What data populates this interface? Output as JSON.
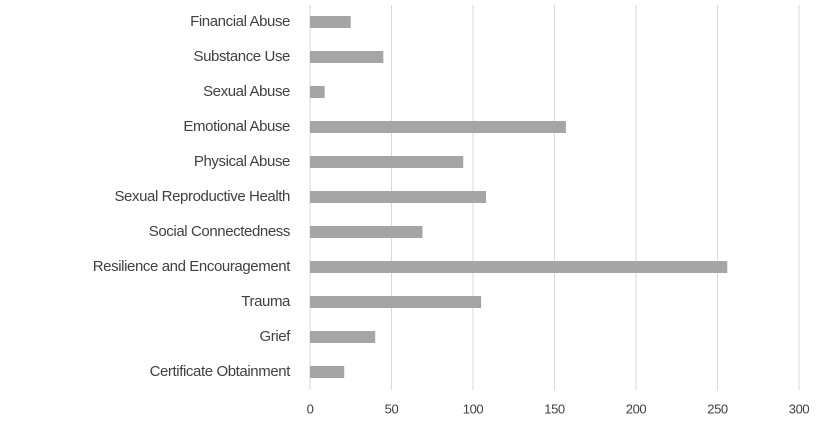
{
  "chart_data": {
    "type": "hbar",
    "categories": [
      "Financial Abuse",
      "Substance Use",
      "Sexual Abuse",
      "Emotional Abuse",
      "Physical Abuse",
      "Sexual Reproductive Health",
      "Social Connectedness",
      "Resilience and Encouragement",
      "Trauma",
      "Grief",
      "Certificate Obtainment"
    ],
    "values": [
      25,
      45,
      9,
      157,
      94,
      108,
      69,
      256,
      105,
      40,
      21
    ],
    "color": "#a5a5a5",
    "xlim": [
      0,
      300
    ],
    "xticks": [
      0,
      50,
      100,
      150,
      200,
      250,
      300
    ],
    "grid": true
  }
}
